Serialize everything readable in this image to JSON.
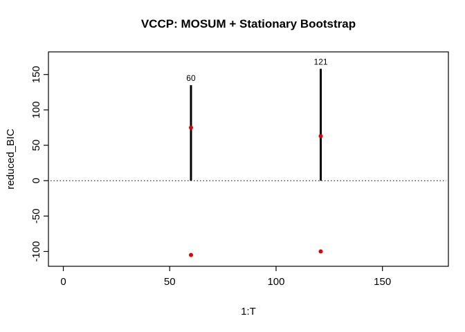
{
  "chart_data": {
    "type": "scatter",
    "title": "VCCP: MOSUM + Stationary Bootstrap",
    "xlabel": "1:T",
    "ylabel": "reduced_BIC",
    "xlim": [
      -7,
      181
    ],
    "ylim": [
      -121,
      182
    ],
    "x_ticks": [
      0,
      50,
      100,
      150
    ],
    "y_ticks": [
      -100,
      -50,
      0,
      50,
      100,
      150
    ],
    "grid": false,
    "legend": false,
    "hline": {
      "y": 0,
      "style": "dotted",
      "color": "#000000"
    },
    "segments": [
      {
        "x": 60,
        "y0": 0,
        "y1": 135,
        "label": "60"
      },
      {
        "x": 121,
        "y0": 0,
        "y1": 158,
        "label": "121"
      }
    ],
    "points": [
      {
        "x": 60,
        "y": 75
      },
      {
        "x": 121,
        "y": 63
      },
      {
        "x": 60,
        "y": -105
      },
      {
        "x": 121,
        "y": -100
      }
    ],
    "point_color": "#e00000",
    "line_color": "#000000"
  }
}
